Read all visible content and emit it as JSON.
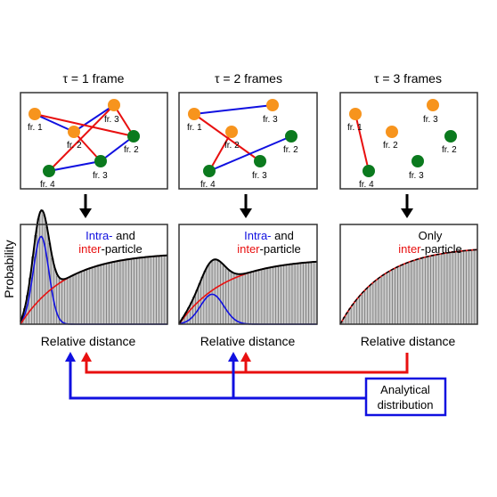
{
  "columns": [
    {
      "tau_label": "τ = 1 frame",
      "particles": {
        "orange": [
          "fr. 1",
          "fr. 2",
          "fr. 3"
        ],
        "green": [
          "fr. 2",
          "fr. 3",
          "fr. 4"
        ]
      },
      "annotation": {
        "line1_blue": "Intra-",
        "line1_black": " and",
        "line2_red": "inter",
        "line2_black": "-particle"
      },
      "xlabel": "Relative distance"
    },
    {
      "tau_label": "τ = 2 frames",
      "particles": {
        "orange": [
          "fr. 1",
          "fr. 2",
          "fr. 3"
        ],
        "green": [
          "fr. 2",
          "fr. 3",
          "fr. 4"
        ]
      },
      "annotation": {
        "line1_blue": "Intra-",
        "line1_black": " and",
        "line2_red": "inter",
        "line2_black": "-particle"
      },
      "xlabel": "Relative distance"
    },
    {
      "tau_label": "τ = 3 frames",
      "particles": {
        "orange": [
          "fr. 1",
          "fr. 2",
          "fr. 3"
        ],
        "green": [
          "fr. 2",
          "fr. 3",
          "fr. 4"
        ]
      },
      "annotation": {
        "line1_black": "Only",
        "line2_red": "inter",
        "line2_black": "-particle"
      },
      "xlabel": "Relative distance"
    }
  ],
  "ylabel": "Probability",
  "analytical_box": {
    "line1": "Analytical",
    "line2": "distribution"
  },
  "colors": {
    "orange": "#f7941d",
    "green": "#0b7a1e",
    "blue": "#1010e0",
    "red": "#e81010",
    "hist_fill": "#c8c8c8",
    "frame": "#333333"
  }
}
